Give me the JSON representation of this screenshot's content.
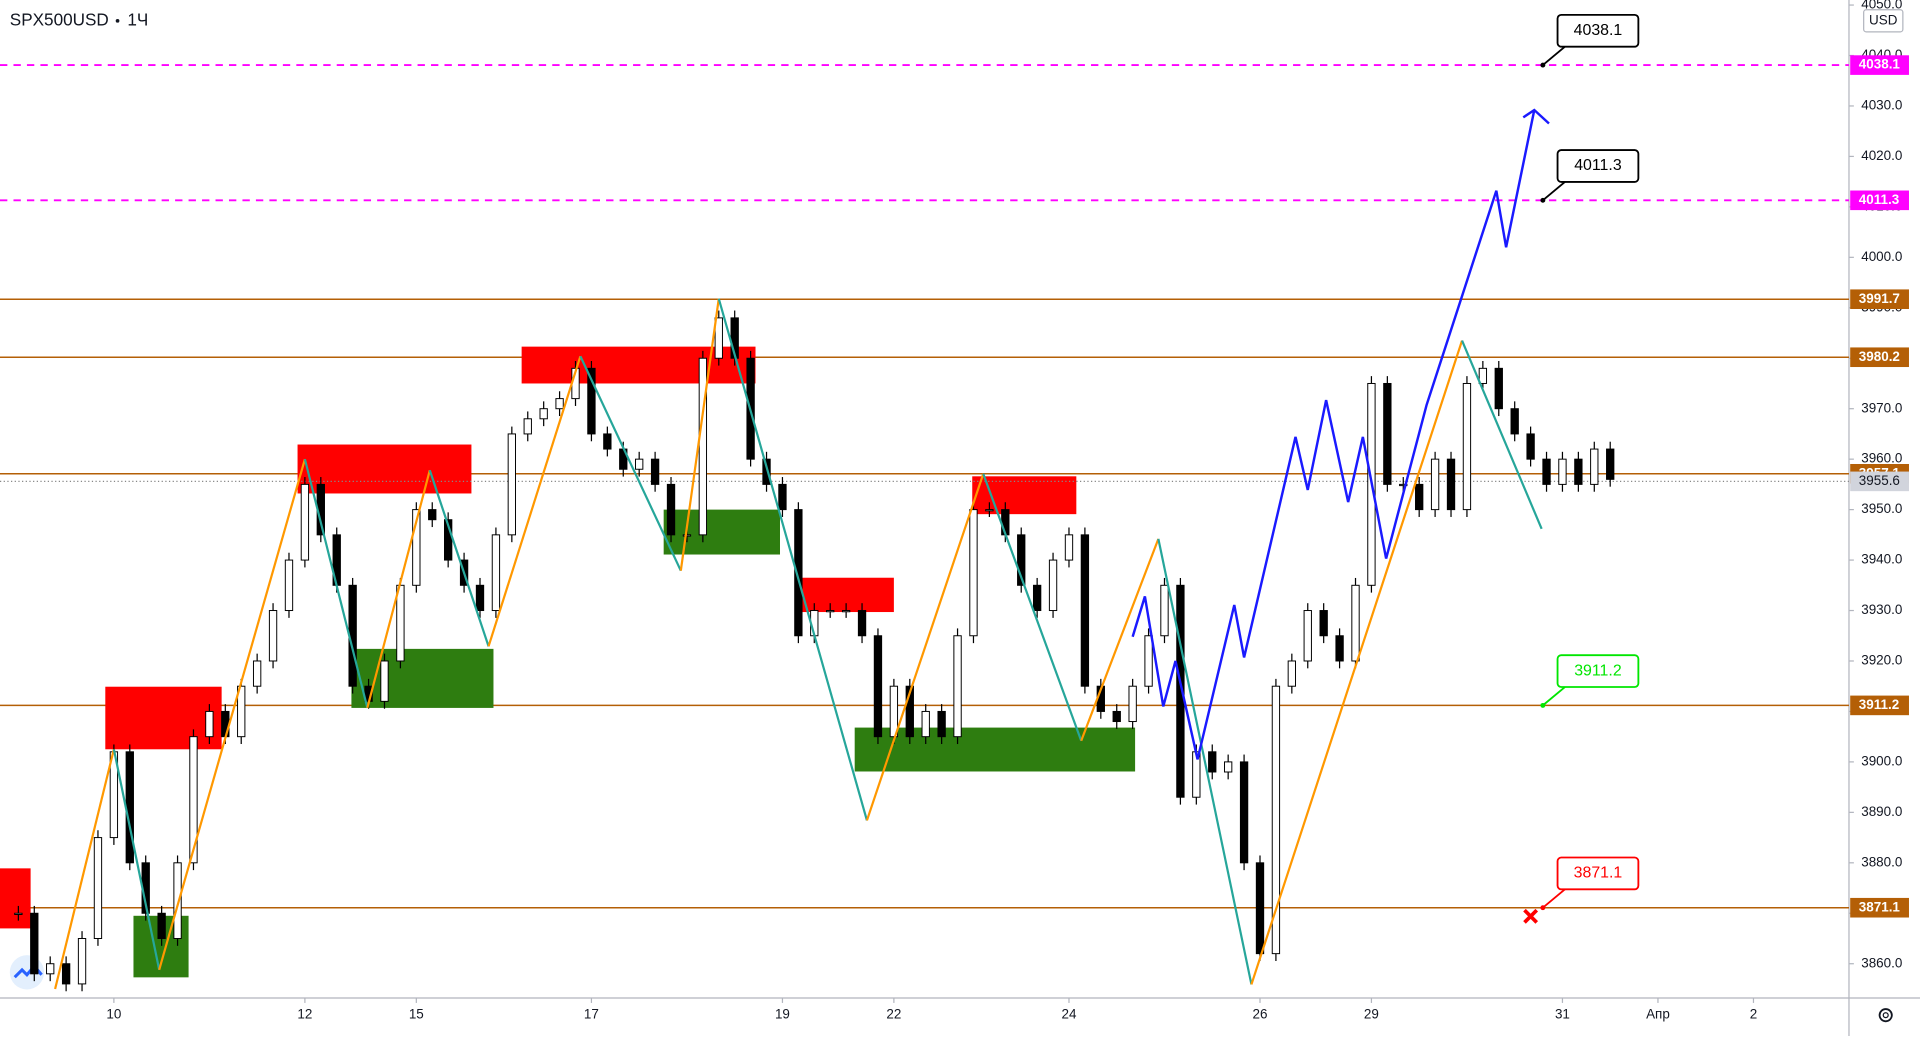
{
  "chart_data": {
    "type": "candlestick",
    "symbol": "SPX500USD",
    "interval": "1Ч",
    "currency": "USD",
    "categories": [
      null,
      null,
      null,
      null,
      null,
      null,
      "10",
      null,
      null,
      null,
      null,
      null,
      null,
      null,
      null,
      null,
      null,
      null,
      "12",
      null,
      null,
      null,
      null,
      null,
      null,
      "15",
      null,
      null,
      null,
      null,
      null,
      null,
      null,
      null,
      null,
      null,
      "17",
      null,
      null,
      null,
      null,
      null,
      null,
      null,
      null,
      null,
      null,
      null,
      "19",
      null,
      null,
      null,
      null,
      null,
      null,
      "22",
      null,
      null,
      null,
      null,
      null,
      null,
      null,
      null,
      null,
      null,
      "24",
      null,
      null,
      null,
      null,
      null,
      null,
      null,
      null,
      null,
      null,
      null,
      "26",
      null,
      null,
      null,
      null,
      null,
      null,
      "29",
      null,
      null,
      null,
      null,
      null,
      null,
      null,
      null,
      null,
      null,
      null,
      "31",
      null,
      null,
      null,
      null,
      null,
      "Апр",
      null,
      null,
      null,
      null,
      null,
      "2"
    ],
    "values": [
      3870,
      3858,
      3860,
      3856,
      3865,
      3885,
      3902,
      3880,
      3870,
      3865,
      3880,
      3905,
      3910,
      3905,
      3915,
      3920,
      3930,
      3940,
      3955,
      3945,
      3935,
      3915,
      3912,
      3920,
      3935,
      3950,
      3948,
      3940,
      3935,
      3930,
      3945,
      3965,
      3968,
      3970,
      3972,
      3978,
      3965,
      3962,
      3958,
      3960,
      3955,
      3945,
      3945,
      3980,
      3988,
      3980,
      3960,
      3955,
      3950,
      3925,
      3930,
      3930,
      3930,
      3925,
      3905,
      3915,
      3905,
      3910,
      3905,
      3925,
      3950,
      3950,
      3945,
      3935,
      3930,
      3940,
      3945,
      3915,
      3910,
      3908,
      3915,
      3925,
      3935,
      3893,
      3902,
      3898,
      3900,
      3880,
      3862,
      3915,
      3920,
      3930,
      3925,
      3920,
      3935,
      3975,
      3955,
      3955,
      3950,
      3960,
      3950,
      3975,
      3978,
      3970,
      3965,
      3960,
      3955,
      3960,
      3955,
      3962,
      3956,
      null,
      null,
      null,
      null,
      null,
      null,
      null,
      null,
      null
    ],
    "ylim": [
      3853.2,
      4051.0
    ],
    "yticks": [
      {
        "value": 3860,
        "label": "3860.0"
      },
      {
        "value": 3870,
        "label": "3870.0"
      },
      {
        "value": 3880,
        "label": "3880.0"
      },
      {
        "value": 3890,
        "label": "3890.0"
      },
      {
        "value": 3900,
        "label": "3900.0"
      },
      {
        "value": 3910,
        "label": "3910.0"
      },
      {
        "value": 3920,
        "label": "3920.0"
      },
      {
        "value": 3930,
        "label": "3930.0"
      },
      {
        "value": 3940,
        "label": "3940.0"
      },
      {
        "value": 3950,
        "label": "3950.0"
      },
      {
        "value": 3960,
        "label": "3960.0"
      },
      {
        "value": 3970,
        "label": "3970.0"
      },
      {
        "value": 3980,
        "label": "3980.0"
      },
      {
        "value": 3990,
        "label": "3990.0"
      },
      {
        "value": 4000,
        "label": "4000.0"
      },
      {
        "value": 4010,
        "label": "4010.0"
      },
      {
        "value": 4020,
        "label": "4020.0"
      },
      {
        "value": 4030,
        "label": "4030.0"
      },
      {
        "value": 4040,
        "label": "4040.0"
      },
      {
        "value": 4050,
        "label": "4050.0"
      }
    ],
    "levels": [
      {
        "value": 4038.1,
        "color": "#ff00ff",
        "style": "dashed",
        "callout_color": "#000000"
      },
      {
        "value": 4011.3,
        "color": "#ff00ff",
        "style": "dashed",
        "callout_color": "#000000"
      },
      {
        "value": 3991.7,
        "color": "#b45f06",
        "style": "solid"
      },
      {
        "value": 3980.2,
        "color": "#b45f06",
        "style": "solid"
      },
      {
        "value": 3957.1,
        "color": "#b45f06",
        "style": "solid"
      },
      {
        "value": 3911.2,
        "color": "#b45f06",
        "style": "solid",
        "callout_color": "#00e600"
      },
      {
        "value": 3871.1,
        "color": "#b45f06",
        "style": "solid",
        "callout_color": "#ff0000"
      }
    ],
    "last_price": 3955.6,
    "zones": [
      {
        "top": 3878.9,
        "bottom": 3867.0,
        "color": "#ff0000"
      },
      {
        "top": 3914.9,
        "bottom": 3902.5,
        "color": "#ff0000"
      },
      {
        "top": 3962.9,
        "bottom": 3953.2,
        "color": "#ff0000"
      },
      {
        "top": 3982.3,
        "bottom": 3975.0,
        "color": "#ff0000"
      },
      {
        "top": 3936.5,
        "bottom": 3929.7,
        "color": "#ff0000"
      },
      {
        "top": 3956.6,
        "bottom": 3949.1,
        "color": "#ff0000"
      },
      {
        "top": 3869.5,
        "bottom": 3857.3,
        "color": "#2e7d10"
      },
      {
        "top": 3922.4,
        "bottom": 3910.7,
        "color": "#2e7d10"
      },
      {
        "top": 3950.0,
        "bottom": 3941.1,
        "color": "#2e7d10"
      },
      {
        "top": 3906.8,
        "bottom": 3898.1,
        "color": "#2e7d10"
      }
    ],
    "zigzag": [
      3855,
      3902.5,
      3858.8,
      3960.0,
      3910.7,
      3957.8,
      3922.9,
      3980.4,
      3937.9,
      3991.8,
      3888.4,
      3957.1,
      3904.2,
      3944.2,
      3855.9,
      3983.5,
      3946.2
    ],
    "zigzag_colors": [
      "#ff9800",
      "#26a69a"
    ],
    "projection": [
      3924.8,
      3932.8,
      3911.0,
      3920.0,
      3900.5,
      3931.1,
      3920.7,
      3964.4,
      3953.9,
      3971.7,
      3951.5,
      3964.4,
      3940.3,
      3970.7,
      4013.2,
      4002.0,
      4029.2
    ],
    "projection_color": "#1a1aff"
  }
}
